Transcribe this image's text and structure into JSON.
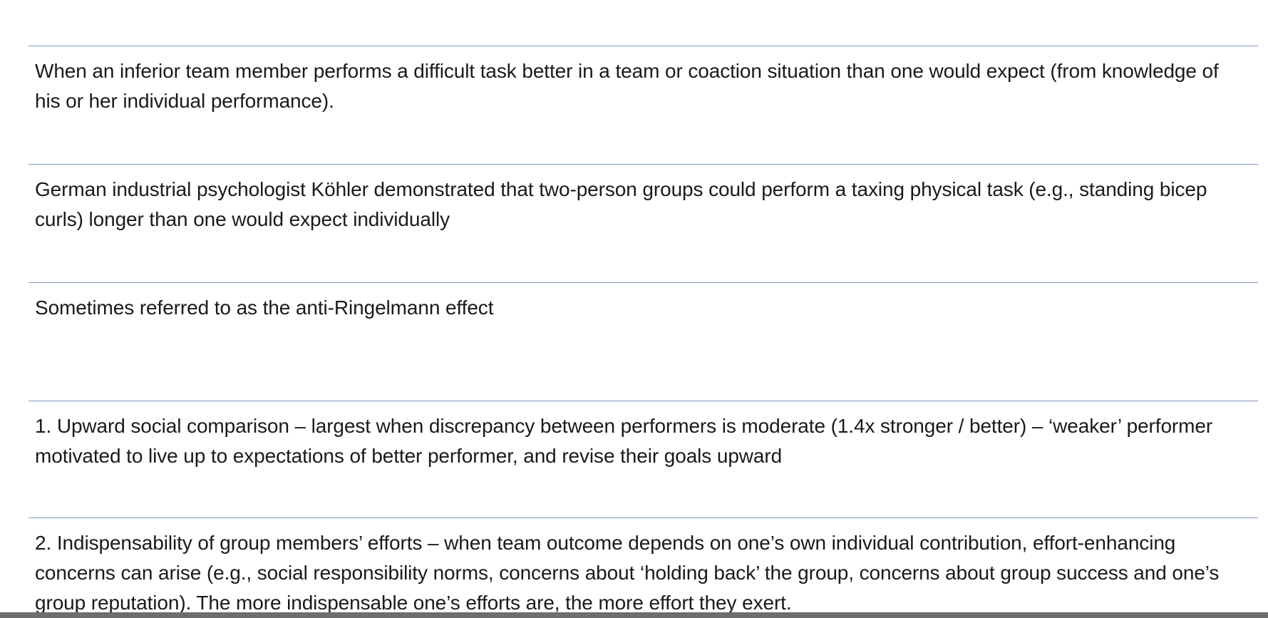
{
  "rows": [
    {
      "text": "When an inferior team member performs a difficult task better in a team or coaction situation than one would expect (from knowledge of his or her individual performance)."
    },
    {
      "text": "German industrial psychologist Köhler demonstrated that two-person groups could perform a taxing physical task (e.g., standing bicep curls)  longer than one would expect individually"
    },
    {
      "text": "Sometimes referred to as the anti-Ringelmann effect"
    },
    {
      "text": "1. Upward social comparison – largest when discrepancy between performers is moderate (1.4x stronger / better) – ‘weaker’ performer motivated to live up to expectations of better performer, and revise their goals upward"
    },
    {
      "text": "2. Indispensability of group members’ efforts – when team outcome depends on one’s own individual contribution, effort-enhancing concerns can arise (e.g., social responsibility norms, concerns about ‘holding back’ the group, concerns about group success and one’s group reputation). The more indispensable one’s efforts are, the more effort they exert."
    }
  ],
  "colors": {
    "divider": "#7f96c2",
    "text": "#1a1a1a",
    "bottom_bar": "#6e6e6e"
  }
}
